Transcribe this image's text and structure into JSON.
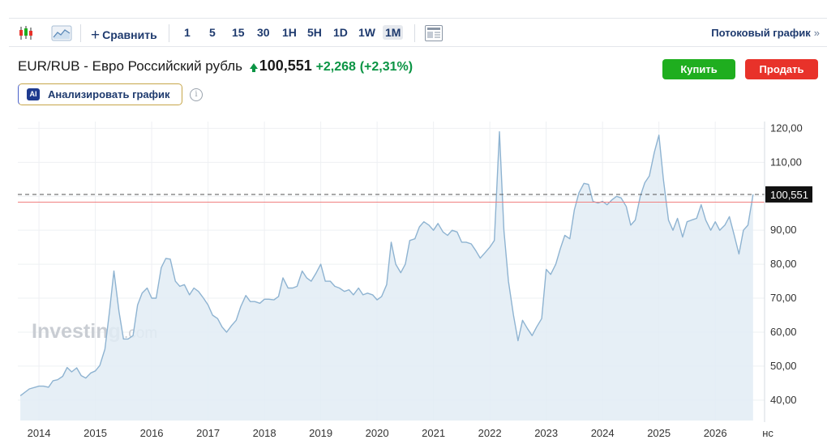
{
  "toolbar": {
    "compare_label": "Сравнить",
    "timeframes": [
      "1",
      "5",
      "15",
      "30",
      "1H",
      "5H",
      "1D",
      "1W",
      "1M"
    ],
    "active_timeframe": "1M",
    "stream_label": "Потоковый график",
    "stream_arrow": "»",
    "icons": [
      "candlestick-icon",
      "area-chart-icon",
      "plus-icon",
      "news-panel-icon"
    ]
  },
  "header": {
    "instrument": "EUR/RUB - Евро Российский рубль",
    "price": "100,551",
    "change": "+2,268",
    "change_pct": "(+2,31%)",
    "change_color": "#0b9444"
  },
  "actions": {
    "buy_label": "Купить",
    "buy_color": "#1fae1f",
    "sell_label": "Продать",
    "sell_color": "#e8322a"
  },
  "ai": {
    "badge": "AI",
    "label": "Анализировать график",
    "info_glyph": "i"
  },
  "watermark": {
    "brand": "Investing",
    "suffix": ".com"
  },
  "chart_data": {
    "type": "area",
    "x_ticks": [
      "2014",
      "2015",
      "2016",
      "2017",
      "2018",
      "2019",
      "2020",
      "2021",
      "2022",
      "2023",
      "2024",
      "2025",
      "2026",
      "нс"
    ],
    "y_ticks": [
      "40,00",
      "50,00",
      "60,00",
      "70,00",
      "80,00",
      "90,00",
      "100,00",
      "110,00",
      "120,00"
    ],
    "ylim": [
      34,
      122
    ],
    "xlim": [
      2013.625,
      2026.875
    ],
    "current_value_label": "100,551",
    "current_value": 100.551,
    "reference_value": 98.28,
    "line_color": "#8eb3d1",
    "fill_color": "#e2ecf5",
    "reference_line_color": "#f08080",
    "series": [
      {
        "points": [
          [
            2013.67,
            41.3
          ],
          [
            2013.83,
            43.3
          ],
          [
            2014.0,
            44.1
          ],
          [
            2014.08,
            44.1
          ],
          [
            2014.17,
            43.8
          ],
          [
            2014.25,
            45.7
          ],
          [
            2014.33,
            46.0
          ],
          [
            2014.42,
            47.0
          ],
          [
            2014.5,
            49.6
          ],
          [
            2014.58,
            48.3
          ],
          [
            2014.67,
            49.5
          ],
          [
            2014.75,
            47.2
          ],
          [
            2014.83,
            46.5
          ],
          [
            2014.92,
            48.0
          ],
          [
            2015.0,
            48.6
          ],
          [
            2015.08,
            50.2
          ],
          [
            2015.17,
            55.0
          ],
          [
            2015.25,
            66.0
          ],
          [
            2015.33,
            78.0
          ],
          [
            2015.42,
            66.0
          ],
          [
            2015.5,
            58.0
          ],
          [
            2015.58,
            58.0
          ],
          [
            2015.67,
            59.0
          ],
          [
            2015.75,
            68.0
          ],
          [
            2015.83,
            71.5
          ],
          [
            2015.92,
            73.0
          ],
          [
            2016.0,
            70.0
          ],
          [
            2016.08,
            70.0
          ],
          [
            2016.17,
            79.0
          ],
          [
            2016.25,
            81.7
          ],
          [
            2016.33,
            81.5
          ],
          [
            2016.42,
            75.0
          ],
          [
            2016.5,
            73.5
          ],
          [
            2016.58,
            74.0
          ],
          [
            2016.67,
            71.0
          ],
          [
            2016.75,
            73.0
          ],
          [
            2016.83,
            72.0
          ],
          [
            2016.92,
            70.0
          ],
          [
            2017.0,
            68.0
          ],
          [
            2017.08,
            65.0
          ],
          [
            2017.17,
            64.0
          ],
          [
            2017.25,
            61.5
          ],
          [
            2017.33,
            60.0
          ],
          [
            2017.42,
            62.0
          ],
          [
            2017.5,
            63.5
          ],
          [
            2017.58,
            67.5
          ],
          [
            2017.67,
            70.8
          ],
          [
            2017.75,
            69.0
          ],
          [
            2017.83,
            69.0
          ],
          [
            2017.92,
            68.5
          ],
          [
            2018.0,
            69.7
          ],
          [
            2018.08,
            69.7
          ],
          [
            2018.17,
            69.5
          ],
          [
            2018.25,
            70.5
          ],
          [
            2018.33,
            76.0
          ],
          [
            2018.42,
            73.0
          ],
          [
            2018.5,
            73.0
          ],
          [
            2018.58,
            73.5
          ],
          [
            2018.67,
            78.0
          ],
          [
            2018.75,
            76.0
          ],
          [
            2018.83,
            75.0
          ],
          [
            2018.92,
            77.5
          ],
          [
            2019.0,
            80.0
          ],
          [
            2019.08,
            75.0
          ],
          [
            2019.17,
            75.0
          ],
          [
            2019.25,
            73.5
          ],
          [
            2019.33,
            73.0
          ],
          [
            2019.42,
            72.0
          ],
          [
            2019.5,
            72.5
          ],
          [
            2019.58,
            71.0
          ],
          [
            2019.67,
            73.0
          ],
          [
            2019.75,
            71.0
          ],
          [
            2019.83,
            71.5
          ],
          [
            2019.92,
            71.0
          ],
          [
            2020.0,
            69.5
          ],
          [
            2020.08,
            70.5
          ],
          [
            2020.17,
            74.0
          ],
          [
            2020.25,
            86.5
          ],
          [
            2020.33,
            80.0
          ],
          [
            2020.42,
            77.5
          ],
          [
            2020.5,
            80.0
          ],
          [
            2020.58,
            87.0
          ],
          [
            2020.67,
            87.5
          ],
          [
            2020.75,
            91.0
          ],
          [
            2020.83,
            92.5
          ],
          [
            2020.92,
            91.5
          ],
          [
            2021.0,
            90.0
          ],
          [
            2021.08,
            92.0
          ],
          [
            2021.17,
            89.5
          ],
          [
            2021.25,
            88.5
          ],
          [
            2021.33,
            90.0
          ],
          [
            2021.42,
            89.5
          ],
          [
            2021.5,
            86.5
          ],
          [
            2021.58,
            86.5
          ],
          [
            2021.67,
            86.0
          ],
          [
            2021.75,
            84.0
          ],
          [
            2021.83,
            81.8
          ],
          [
            2021.92,
            83.5
          ],
          [
            2022.0,
            85.0
          ],
          [
            2022.08,
            87.0
          ],
          [
            2022.17,
            119.0
          ],
          [
            2022.25,
            90.0
          ],
          [
            2022.33,
            75.0
          ],
          [
            2022.42,
            65.0
          ],
          [
            2022.5,
            57.5
          ],
          [
            2022.58,
            63.5
          ],
          [
            2022.67,
            61.0
          ],
          [
            2022.75,
            59.0
          ],
          [
            2022.83,
            61.5
          ],
          [
            2022.92,
            64.0
          ],
          [
            2023.0,
            78.5
          ],
          [
            2023.08,
            77.0
          ],
          [
            2023.17,
            80.0
          ],
          [
            2023.25,
            84.5
          ],
          [
            2023.33,
            88.5
          ],
          [
            2023.42,
            87.5
          ],
          [
            2023.5,
            96.0
          ],
          [
            2023.58,
            101.0
          ],
          [
            2023.67,
            103.8
          ],
          [
            2023.75,
            103.5
          ],
          [
            2023.83,
            98.5
          ],
          [
            2023.92,
            98.0
          ],
          [
            2024.0,
            98.5
          ],
          [
            2024.08,
            97.5
          ],
          [
            2024.17,
            99.0
          ],
          [
            2024.25,
            100.0
          ],
          [
            2024.33,
            99.5
          ],
          [
            2024.42,
            97.0
          ],
          [
            2024.5,
            91.5
          ],
          [
            2024.58,
            93.0
          ],
          [
            2024.67,
            100.0
          ],
          [
            2024.75,
            104.0
          ],
          [
            2024.83,
            106.0
          ],
          [
            2024.92,
            113.0
          ],
          [
            2025.0,
            118.0
          ],
          [
            2025.08,
            105.0
          ],
          [
            2025.17,
            93.0
          ],
          [
            2025.25,
            90.0
          ],
          [
            2025.33,
            93.5
          ],
          [
            2025.42,
            88.0
          ],
          [
            2025.5,
            92.5
          ],
          [
            2025.58,
            93.0
          ],
          [
            2025.67,
            93.5
          ],
          [
            2025.75,
            97.5
          ],
          [
            2025.83,
            93.0
          ],
          [
            2025.92,
            90.0
          ],
          [
            2026.0,
            92.5
          ],
          [
            2026.08,
            90.0
          ],
          [
            2026.17,
            91.5
          ],
          [
            2026.25,
            94.0
          ],
          [
            2026.33,
            89.0
          ],
          [
            2026.42,
            83.0
          ],
          [
            2026.5,
            90.0
          ],
          [
            2026.58,
            91.5
          ],
          [
            2026.67,
            100.551
          ]
        ]
      }
    ]
  }
}
